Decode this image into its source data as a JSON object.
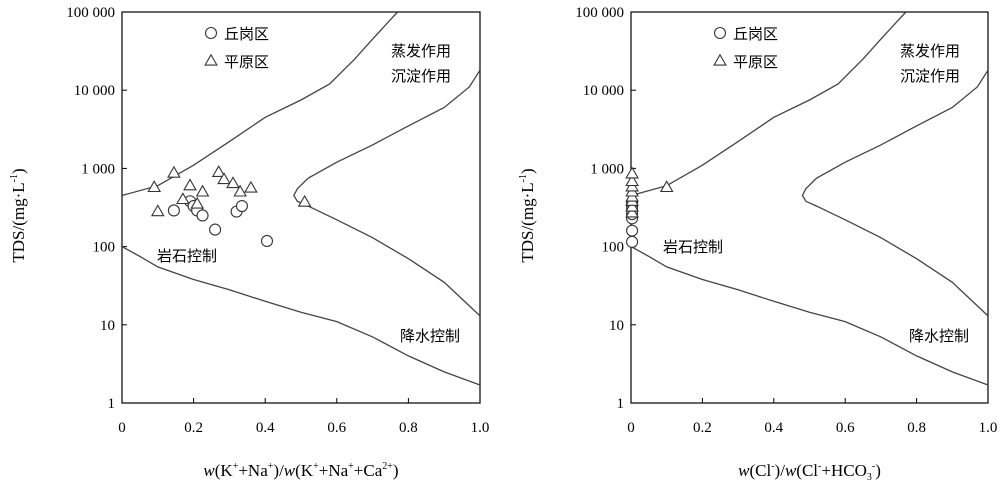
{
  "chart_data": [
    {
      "type": "scatter",
      "xlabel": {
        "prefix": "w",
        "parts": [
          "(K",
          "+",
          "+Na",
          "+",
          ")/",
          "w",
          "(K",
          "+",
          "+Na",
          "+",
          "+Ca",
          "2+",
          ")"
        ]
      },
      "ylabel": "TDS/(mg·L",
      "ylabel_sup": "-1",
      "ylabel_tail": ")",
      "xlim": [
        0,
        1.0
      ],
      "ylim": [
        1,
        100000
      ],
      "y_scale": "log",
      "x_ticks": [
        "0",
        "0.2",
        "0.4",
        "0.6",
        "0.8",
        "1.0"
      ],
      "y_ticks": [
        "1",
        "10",
        "100",
        "1 000",
        "10 000",
        "100 000"
      ],
      "legend": [
        {
          "marker": "circle",
          "label": "丘岗区"
        },
        {
          "marker": "triangle",
          "label": "平原区"
        }
      ],
      "annotations": {
        "evaporation": [
          "蒸发作用",
          "沉淀作用"
        ],
        "rock": "岩石控制",
        "precip": "降水控制"
      },
      "series": [
        {
          "name": "丘岗区",
          "marker": "circle",
          "points": [
            [
              0.145,
              290
            ],
            [
              0.19,
              380
            ],
            [
              0.2,
              330
            ],
            [
              0.21,
              290
            ],
            [
              0.225,
              250
            ],
            [
              0.26,
              165
            ],
            [
              0.32,
              280
            ],
            [
              0.335,
              330
            ],
            [
              0.405,
              118
            ]
          ]
        },
        {
          "name": "平原区",
          "marker": "triangle",
          "points": [
            [
              0.09,
              570
            ],
            [
              0.1,
              280
            ],
            [
              0.145,
              870
            ],
            [
              0.17,
              400
            ],
            [
              0.19,
              600
            ],
            [
              0.21,
              350
            ],
            [
              0.225,
              500
            ],
            [
              0.27,
              890
            ],
            [
              0.285,
              720
            ],
            [
              0.31,
              640
            ],
            [
              0.33,
              500
            ],
            [
              0.36,
              560
            ],
            [
              0.51,
              370
            ]
          ]
        }
      ],
      "boundary_curves": [
        {
          "points": [
            [
              0,
              450
            ],
            [
              0.1,
              600
            ],
            [
              0.2,
              1100
            ],
            [
              0.3,
              2200
            ],
            [
              0.4,
              4500
            ],
            [
              0.5,
              7500
            ],
            [
              0.58,
              12000
            ],
            [
              0.65,
              25000
            ],
            [
              0.7,
              45000
            ],
            [
              0.75,
              80000
            ],
            [
              0.77,
              100000
            ]
          ]
        },
        {
          "points": [
            [
              1.0,
              18000
            ],
            [
              0.97,
              11000
            ],
            [
              0.9,
              6000
            ],
            [
              0.8,
              3500
            ],
            [
              0.7,
              2000
            ],
            [
              0.6,
              1200
            ],
            [
              0.52,
              750
            ],
            [
              0.49,
              550
            ],
            [
              0.48,
              450
            ],
            [
              0.49,
              380
            ],
            [
              0.52,
              330
            ],
            [
              0.6,
              220
            ],
            [
              0.7,
              130
            ],
            [
              0.8,
              70
            ],
            [
              0.9,
              35
            ],
            [
              1.0,
              13
            ]
          ]
        },
        {
          "points": [
            [
              0,
              100
            ],
            [
              0.05,
              75
            ],
            [
              0.1,
              55
            ],
            [
              0.2,
              38
            ],
            [
              0.3,
              28
            ],
            [
              0.4,
              20
            ],
            [
              0.5,
              14.5
            ],
            [
              0.6,
              11
            ],
            [
              0.7,
              7
            ],
            [
              0.8,
              4
            ],
            [
              0.9,
              2.5
            ],
            [
              1.0,
              1.7
            ]
          ]
        }
      ]
    },
    {
      "type": "scatter",
      "xlabel": {
        "prefix": "w",
        "parts": [
          "(Cl",
          "-",
          ")/",
          "w",
          "(Cl",
          "-",
          "+HCO",
          "3",
          "-",
          ")"
        ]
      },
      "ylabel": "TDS/(mg·L",
      "ylabel_sup": "-1",
      "ylabel_tail": ")",
      "xlim": [
        0,
        1.0
      ],
      "ylim": [
        1,
        100000
      ],
      "y_scale": "log",
      "x_ticks": [
        "0",
        "0.2",
        "0.4",
        "0.6",
        "0.8",
        "1.0"
      ],
      "y_ticks": [
        "1",
        "10",
        "100",
        "1 000",
        "10 000",
        "100 000"
      ],
      "legend": [
        {
          "marker": "circle",
          "label": "丘岗区"
        },
        {
          "marker": "triangle",
          "label": "平原区"
        }
      ],
      "annotations": {
        "evaporation": [
          "蒸发作用",
          "沉淀作用"
        ],
        "rock": "岩石控制",
        "precip": "降水控制"
      },
      "series": [
        {
          "name": "丘岗区",
          "marker": "circle",
          "points": [
            [
              0.003,
              115
            ],
            [
              0.003,
              160
            ],
            [
              0.003,
              230
            ],
            [
              0.003,
              260
            ],
            [
              0.003,
              290
            ],
            [
              0.003,
              320
            ],
            [
              0.003,
              360
            ]
          ]
        },
        {
          "name": "平原区",
          "marker": "triangle",
          "points": [
            [
              0.003,
              270
            ],
            [
              0.003,
              320
            ],
            [
              0.003,
              380
            ],
            [
              0.003,
              430
            ],
            [
              0.003,
              500
            ],
            [
              0.003,
              580
            ],
            [
              0.003,
              680
            ],
            [
              0.003,
              850
            ],
            [
              0.1,
              570
            ]
          ]
        }
      ],
      "boundary_curves": [
        {
          "points": [
            [
              0,
              450
            ],
            [
              0.1,
              600
            ],
            [
              0.2,
              1100
            ],
            [
              0.3,
              2200
            ],
            [
              0.4,
              4500
            ],
            [
              0.5,
              7500
            ],
            [
              0.58,
              12000
            ],
            [
              0.65,
              25000
            ],
            [
              0.7,
              45000
            ],
            [
              0.75,
              80000
            ],
            [
              0.77,
              100000
            ]
          ]
        },
        {
          "points": [
            [
              1.0,
              18000
            ],
            [
              0.97,
              11000
            ],
            [
              0.9,
              6000
            ],
            [
              0.8,
              3500
            ],
            [
              0.7,
              2000
            ],
            [
              0.6,
              1200
            ],
            [
              0.52,
              750
            ],
            [
              0.49,
              550
            ],
            [
              0.48,
              450
            ],
            [
              0.49,
              380
            ],
            [
              0.52,
              330
            ],
            [
              0.6,
              220
            ],
            [
              0.7,
              130
            ],
            [
              0.8,
              70
            ],
            [
              0.9,
              35
            ],
            [
              1.0,
              13
            ]
          ]
        },
        {
          "points": [
            [
              0,
              100
            ],
            [
              0.05,
              75
            ],
            [
              0.1,
              55
            ],
            [
              0.2,
              38
            ],
            [
              0.3,
              28
            ],
            [
              0.4,
              20
            ],
            [
              0.5,
              14.5
            ],
            [
              0.6,
              11
            ],
            [
              0.7,
              7
            ],
            [
              0.8,
              4
            ],
            [
              0.9,
              2.5
            ],
            [
              1.0,
              1.7
            ]
          ]
        }
      ]
    }
  ]
}
